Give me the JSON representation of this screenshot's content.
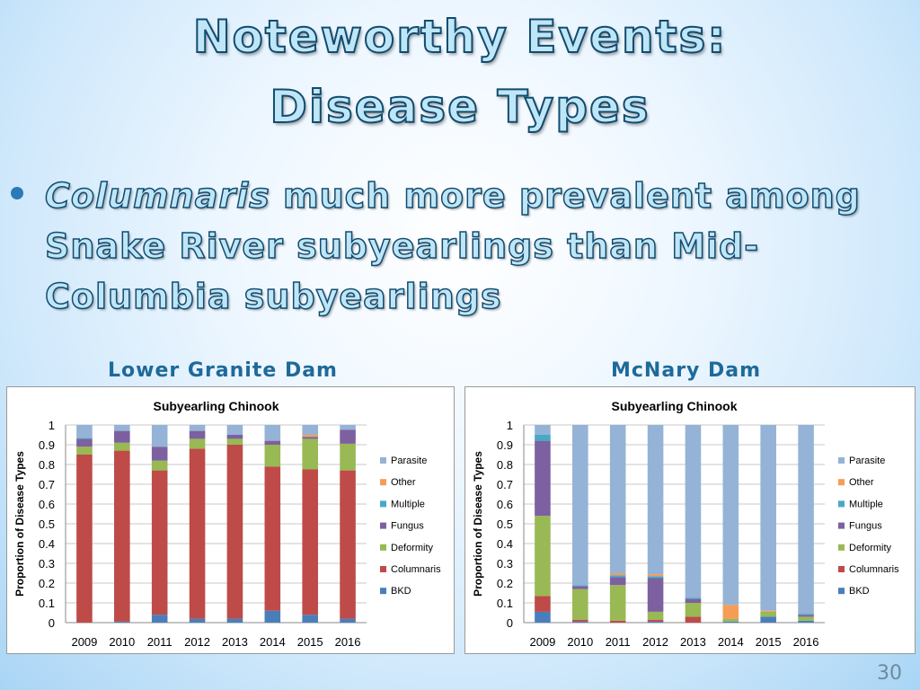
{
  "slide": {
    "title_line1": "Noteworthy Events:",
    "title_line2": "Disease Types",
    "bullet_emphasis": "Columnaris",
    "bullet_line1_rest": " much more prevalent among",
    "bullet_line2": "Snake River subyearlings than Mid-",
    "bullet_line3": "Columbia subyearlings",
    "left_dam": "Lower Granite Dam",
    "right_dam": "McNary Dam",
    "page_number": "30"
  },
  "colors": {
    "BKD": "#4a7ebb",
    "Columnaris": "#be4b48",
    "Deformity": "#98b954",
    "Fungus": "#7d60a0",
    "Multiple": "#46aac5",
    "Other": "#f59d56",
    "Parasite": "#95b3d7"
  },
  "chart_data": [
    {
      "type": "bar",
      "stacked": true,
      "title": "Subyearling Chinook",
      "xlabel": "",
      "ylabel": "Proportion of Disease Types",
      "ylim": [
        0,
        1
      ],
      "yticks": [
        "0",
        "0.1",
        "0.2",
        "0.3",
        "0.4",
        "0.5",
        "0.6",
        "0.7",
        "0.8",
        "0.9",
        "1"
      ],
      "legend_position": "right",
      "legend_order": [
        "Parasite",
        "Other",
        "Multiple",
        "Fungus",
        "Deformity",
        "Columnaris",
        "BKD"
      ],
      "categories": [
        "2009",
        "2010",
        "2011",
        "2012",
        "2013",
        "2014",
        "2015",
        "2016"
      ],
      "series": [
        {
          "name": "BKD",
          "values": [
            0.0,
            0.005,
            0.04,
            0.02,
            0.02,
            0.06,
            0.04,
            0.02
          ]
        },
        {
          "name": "Columnaris",
          "values": [
            0.85,
            0.865,
            0.73,
            0.86,
            0.88,
            0.73,
            0.735,
            0.75
          ]
        },
        {
          "name": "Deformity",
          "values": [
            0.04,
            0.04,
            0.05,
            0.05,
            0.03,
            0.11,
            0.155,
            0.135
          ]
        },
        {
          "name": "Fungus",
          "values": [
            0.04,
            0.06,
            0.07,
            0.04,
            0.02,
            0.02,
            0.01,
            0.07
          ]
        },
        {
          "name": "Multiple",
          "values": [
            0.005,
            0.0,
            0.0,
            0.0,
            0.0,
            0.0,
            0.0,
            0.0
          ]
        },
        {
          "name": "Other",
          "values": [
            0.0,
            0.0,
            0.0,
            0.0,
            0.0,
            0.0,
            0.01,
            0.0
          ]
        },
        {
          "name": "Parasite",
          "values": [
            0.065,
            0.03,
            0.11,
            0.03,
            0.05,
            0.08,
            0.05,
            0.025
          ]
        }
      ]
    },
    {
      "type": "bar",
      "stacked": true,
      "title": "Subyearling Chinook",
      "xlabel": "",
      "ylabel": "Proportion of Disease Types",
      "ylim": [
        0,
        1
      ],
      "yticks": [
        "0",
        "0.1",
        "0.2",
        "0.3",
        "0.4",
        "0.5",
        "0.6",
        "0.7",
        "0.8",
        "0.9",
        "1"
      ],
      "legend_position": "right",
      "legend_order": [
        "Parasite",
        "Other",
        "Multiple",
        "Fungus",
        "Deformity",
        "Columnaris",
        "BKD"
      ],
      "categories": [
        "2009",
        "2010",
        "2011",
        "2012",
        "2013",
        "2014",
        "2015",
        "2016"
      ],
      "series": [
        {
          "name": "BKD",
          "values": [
            0.055,
            0.005,
            0.0,
            0.005,
            0.0,
            0.005,
            0.03,
            0.01
          ]
        },
        {
          "name": "Columnaris",
          "values": [
            0.08,
            0.01,
            0.01,
            0.01,
            0.03,
            0.0,
            0.0,
            0.0
          ]
        },
        {
          "name": "Deformity",
          "values": [
            0.405,
            0.155,
            0.18,
            0.04,
            0.07,
            0.015,
            0.025,
            0.02
          ]
        },
        {
          "name": "Fungus",
          "values": [
            0.38,
            0.015,
            0.04,
            0.17,
            0.02,
            0.0,
            0.0,
            0.01
          ]
        },
        {
          "name": "Multiple",
          "values": [
            0.03,
            0.005,
            0.01,
            0.01,
            0.005,
            0.0,
            0.0,
            0.005
          ]
        },
        {
          "name": "Other",
          "values": [
            0.0,
            0.0,
            0.01,
            0.01,
            0.0,
            0.07,
            0.005,
            0.0
          ]
        },
        {
          "name": "Parasite",
          "values": [
            0.05,
            0.81,
            0.75,
            0.755,
            0.875,
            0.91,
            0.94,
            0.955
          ]
        }
      ]
    }
  ]
}
